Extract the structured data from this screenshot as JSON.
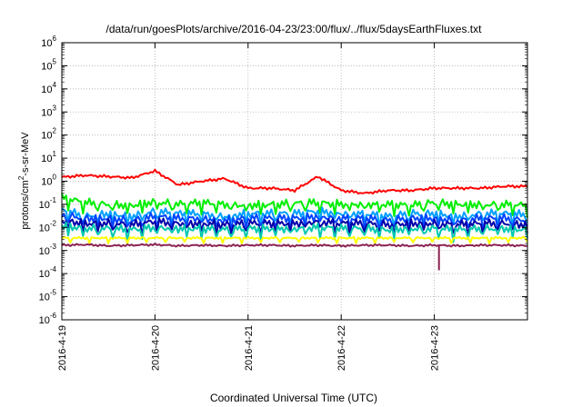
{
  "chart_data": {
    "type": "line",
    "title": "/data/run/goesPlots/archive/2016-04-23/23:00/flux/../flux/5daysEarthFluxes.txt",
    "xlabel": "Coordinated Universal Time (UTC)",
    "ylabel_parts": [
      "protons/cm",
      "2",
      "-s-sr-MeV"
    ],
    "xlim": [
      "2016-04-19 00:00",
      "2016-04-24 00:00"
    ],
    "ylim": [
      1e-06,
      1000000.0
    ],
    "yscale": "log",
    "grid": true,
    "x_ticks": [
      "2016-4-19",
      "2016-4-20",
      "2016-4-21",
      "2016-4-22",
      "2016-4-23"
    ],
    "y_ticks": [
      {
        "base": "10",
        "exp": "-6"
      },
      {
        "base": "10",
        "exp": "-5"
      },
      {
        "base": "10",
        "exp": "-4"
      },
      {
        "base": "10",
        "exp": "-3"
      },
      {
        "base": "10",
        "exp": "-2"
      },
      {
        "base": "10",
        "exp": "-1"
      },
      {
        "base": "10",
        "exp": "0"
      },
      {
        "base": "10",
        "exp": "1"
      },
      {
        "base": "10",
        "exp": "2"
      },
      {
        "base": "10",
        "exp": "3"
      },
      {
        "base": "10",
        "exp": "4"
      },
      {
        "base": "10",
        "exp": "5"
      },
      {
        "base": "10",
        "exp": "6"
      }
    ],
    "x_days": [
      0,
      0.25,
      0.5,
      0.75,
      1,
      1.25,
      1.5,
      1.75,
      2,
      2.25,
      2.5,
      2.75,
      3,
      3.25,
      3.5,
      3.75,
      4,
      4.25,
      4.5,
      4.75,
      5
    ],
    "series": [
      {
        "color": "#ff0000",
        "values": [
          1.5,
          1.8,
          1.6,
          1.4,
          2.8,
          0.7,
          1.0,
          1.3,
          0.5,
          0.5,
          0.4,
          1.6,
          0.4,
          0.3,
          0.4,
          0.4,
          0.5,
          0.5,
          0.5,
          0.6,
          0.6
        ]
      },
      {
        "color": "#00ee00",
        "values": [
          0.2,
          0.12,
          0.1,
          0.09,
          0.13,
          0.1,
          0.12,
          0.1,
          0.09,
          0.1,
          0.11,
          0.12,
          0.1,
          0.1,
          0.1,
          0.09,
          0.12,
          0.1,
          0.1,
          0.1,
          0.09
        ]
      },
      {
        "color": "#00a0ff",
        "values": [
          0.06,
          0.03,
          0.04,
          0.03,
          0.05,
          0.04,
          0.04,
          0.03,
          0.04,
          0.04,
          0.04,
          0.05,
          0.04,
          0.04,
          0.03,
          0.04,
          0.04,
          0.03,
          0.04,
          0.04,
          0.035
        ]
      },
      {
        "color": "#0044ff",
        "values": [
          0.035,
          0.025,
          0.025,
          0.02,
          0.03,
          0.025,
          0.025,
          0.02,
          0.025,
          0.025,
          0.025,
          0.03,
          0.025,
          0.025,
          0.02,
          0.025,
          0.025,
          0.02,
          0.025,
          0.025,
          0.02
        ]
      },
      {
        "color": "#0000aa",
        "values": [
          0.02,
          0.015,
          0.015,
          0.013,
          0.018,
          0.015,
          0.015,
          0.013,
          0.015,
          0.015,
          0.015,
          0.018,
          0.015,
          0.015,
          0.013,
          0.015,
          0.015,
          0.013,
          0.015,
          0.015,
          0.013
        ]
      },
      {
        "color": "#00c8b0",
        "values": [
          0.012,
          0.009,
          0.009,
          0.008,
          0.01,
          0.009,
          0.009,
          0.008,
          0.009,
          0.009,
          0.009,
          0.01,
          0.009,
          0.009,
          0.008,
          0.009,
          0.009,
          0.008,
          0.009,
          0.009,
          0.008
        ]
      },
      {
        "color": "#ffff00",
        "values": [
          0.0035,
          0.0035,
          0.0035,
          0.0035,
          0.0035,
          0.0035,
          0.0035,
          0.0035,
          0.0035,
          0.0035,
          0.0035,
          0.0035,
          0.0035,
          0.0035,
          0.0035,
          0.0035,
          0.0035,
          0.0035,
          0.0035,
          0.0035,
          0.0035
        ]
      },
      {
        "color": "#8b2252",
        "values": [
          0.0017,
          0.0018,
          0.0016,
          0.0017,
          0.0018,
          0.0016,
          0.0017,
          0.0016,
          0.0017,
          0.0017,
          0.0016,
          0.0017,
          0.0016,
          0.0017,
          0.0017,
          0.0016,
          0.0017,
          0.0016,
          0.0017,
          0.0017,
          0.0016
        ]
      }
    ],
    "annotations": [
      {
        "series_color": "#8b2252",
        "x_day": 4.05,
        "value": 0.00014,
        "description": "single-sample dip"
      }
    ]
  }
}
